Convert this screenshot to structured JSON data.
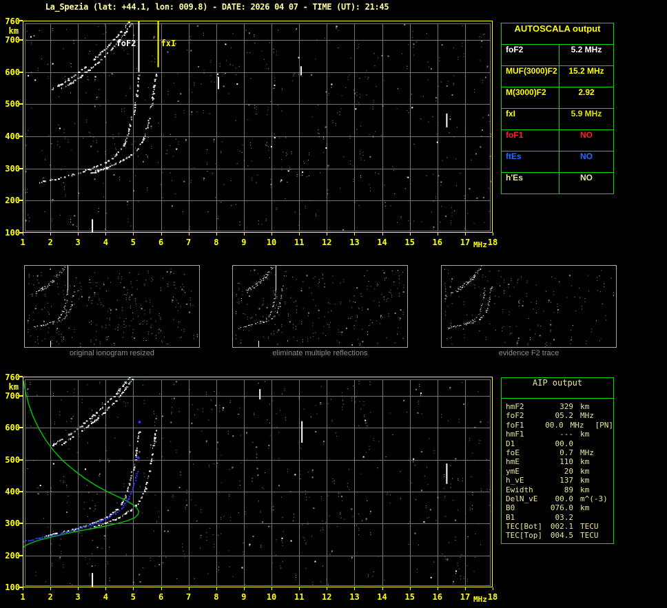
{
  "title": "La_Spezia (lat: +44.1, lon: 009.8) - DATE: 2026 04 07 - TIME (UT): 21:45",
  "colors": {
    "background": "#000000",
    "axis_yellow": "#ffff00",
    "title_yellow": "#ffff9e",
    "grid_gray": "#757575",
    "border_green": "#00dc00",
    "khaki_text": "#e9e79b",
    "trace_white": "#ffffff",
    "profile_green": "#00c800",
    "scaled_blue": "#2a3cff",
    "status_red": "#ff2222",
    "status_blue": "#1e6fff",
    "caption_gray": "#8f8f8f"
  },
  "axes": {
    "freq_ticks": [
      1,
      2,
      3,
      4,
      5,
      6,
      7,
      8,
      9,
      10,
      11,
      12,
      13,
      14,
      15,
      16,
      17,
      18
    ],
    "freq_unit": "MHz",
    "height_ticks": [
      760,
      700,
      600,
      500,
      400,
      300,
      200,
      100
    ],
    "height_unit": "km",
    "freq_range": [
      1,
      18
    ],
    "height_range": [
      100,
      760
    ]
  },
  "chart_data": [
    {
      "id": "main_ionogram",
      "type": "scatter",
      "title": "",
      "xlabel": "MHz",
      "ylabel": "km",
      "xlim": [
        1,
        18
      ],
      "ylim": [
        100,
        760
      ],
      "x_ticks": [
        1,
        2,
        3,
        4,
        5,
        6,
        7,
        8,
        9,
        10,
        11,
        12,
        13,
        14,
        15,
        16,
        17,
        18
      ],
      "y_ticks": [
        760,
        700,
        600,
        500,
        400,
        300,
        200,
        100
      ],
      "annotations": [
        {
          "label": "foF2",
          "freq": 5.2,
          "color": "#ffffff",
          "line_to_km": 600
        },
        {
          "label": "fxI",
          "freq": 5.9,
          "color": "#ffff00",
          "line_to_km": 615
        }
      ],
      "series": [
        {
          "name": "F2-trace-O-mode",
          "color": "#ffffff",
          "points": [
            [
              1.6,
              258
            ],
            [
              1.9,
              264
            ],
            [
              2.2,
              270
            ],
            [
              2.5,
              276
            ],
            [
              2.8,
              282
            ],
            [
              3.1,
              290
            ],
            [
              3.4,
              299
            ],
            [
              3.7,
              309
            ],
            [
              4.0,
              321
            ],
            [
              4.2,
              332
            ],
            [
              4.4,
              347
            ],
            [
              4.55,
              363
            ],
            [
              4.7,
              387
            ],
            [
              4.8,
              412
            ],
            [
              4.87,
              438
            ],
            [
              4.92,
              462
            ]
          ]
        },
        {
          "name": "F2-trace-X-mode",
          "color": "#ffffff",
          "points": [
            [
              3.4,
              286
            ],
            [
              3.7,
              294
            ],
            [
              4.0,
              303
            ],
            [
              4.3,
              314
            ],
            [
              4.6,
              327
            ],
            [
              4.9,
              344
            ],
            [
              5.1,
              360
            ],
            [
              5.3,
              385
            ],
            [
              5.43,
              415
            ],
            [
              5.53,
              445
            ],
            [
              5.58,
              468
            ]
          ]
        },
        {
          "name": "O-mode-asymptote",
          "color": "#ffffff",
          "points": [
            [
              5.0,
              470
            ],
            [
              5.05,
              500
            ],
            [
              5.1,
              530
            ],
            [
              5.15,
              560
            ],
            [
              5.18,
              590
            ]
          ]
        },
        {
          "name": "X-mode-asymptote",
          "color": "#ffffff",
          "points": [
            [
              5.62,
              490
            ],
            [
              5.68,
              520
            ],
            [
              5.72,
              548
            ],
            [
              5.76,
              572
            ],
            [
              5.8,
              595
            ]
          ]
        },
        {
          "name": "second-hop-trace-a",
          "color": "#ffffff",
          "points": [
            [
              2.05,
              548
            ],
            [
              2.35,
              563
            ],
            [
              2.65,
              580
            ],
            [
              2.95,
              598
            ],
            [
              3.25,
              618
            ],
            [
              3.55,
              640
            ],
            [
              3.85,
              664
            ],
            [
              4.15,
              690
            ],
            [
              4.45,
              717
            ],
            [
              4.7,
              743
            ],
            [
              4.82,
              758
            ]
          ]
        },
        {
          "name": "second-hop-trace-b",
          "color": "#ffffff",
          "points": [
            [
              2.4,
              550
            ],
            [
              2.7,
              566
            ],
            [
              3.0,
              584
            ],
            [
              3.3,
              603
            ],
            [
              3.6,
              624
            ],
            [
              3.9,
              648
            ],
            [
              4.2,
              674
            ],
            [
              4.5,
              702
            ],
            [
              4.75,
              730
            ],
            [
              4.92,
              752
            ]
          ]
        }
      ],
      "interference_dashes": [
        [
          3.52,
          100,
          142
        ],
        [
          8.08,
          547,
          585
        ],
        [
          11.07,
          590,
          618
        ],
        [
          16.34,
          428,
          471
        ]
      ]
    },
    {
      "id": "profile_ionogram",
      "type": "scatter",
      "title": "",
      "xlabel": "MHz",
      "ylabel": "km",
      "xlim": [
        1,
        18
      ],
      "ylim": [
        100,
        760
      ],
      "x_ticks": [
        1,
        2,
        3,
        4,
        5,
        6,
        7,
        8,
        9,
        10,
        11,
        12,
        13,
        14,
        15,
        16,
        17,
        18
      ],
      "y_ticks": [
        760,
        700,
        600,
        500,
        400,
        300,
        200,
        100
      ],
      "series": [
        {
          "name": "electron-density-profile",
          "color": "#00c800",
          "points": [
            [
              1.02,
              748
            ],
            [
              1.1,
              712
            ],
            [
              1.22,
              672
            ],
            [
              1.38,
              634
            ],
            [
              1.58,
              598
            ],
            [
              1.82,
              563
            ],
            [
              2.1,
              530
            ],
            [
              2.45,
              497
            ],
            [
              2.85,
              467
            ],
            [
              3.25,
              441
            ],
            [
              3.65,
              419
            ],
            [
              4.05,
              400
            ],
            [
              4.45,
              384
            ],
            [
              4.78,
              370
            ],
            [
              5.0,
              358
            ],
            [
              5.13,
              348
            ],
            [
              5.2,
              338
            ],
            [
              5.17,
              328
            ],
            [
              5.05,
              318
            ],
            [
              4.8,
              309
            ],
            [
              4.45,
              301
            ],
            [
              4.0,
              292
            ],
            [
              3.5,
              284
            ],
            [
              3.0,
              276
            ],
            [
              2.5,
              267
            ],
            [
              2.0,
              257
            ],
            [
              1.6,
              248
            ],
            [
              1.3,
              239
            ],
            [
              1.1,
              231
            ],
            [
              1.0,
              224
            ]
          ]
        },
        {
          "name": "autoscala-scaled-trace",
          "color": "#2a3cff",
          "points": [
            [
              1.0,
              246
            ],
            [
              1.35,
              251
            ],
            [
              1.7,
              257
            ],
            [
              2.05,
              263
            ],
            [
              2.4,
              270
            ],
            [
              2.75,
              278
            ],
            [
              3.1,
              287
            ],
            [
              3.45,
              297
            ],
            [
              3.8,
              309
            ],
            [
              4.1,
              321
            ],
            [
              4.35,
              334
            ],
            [
              4.55,
              349
            ],
            [
              4.7,
              364
            ],
            [
              4.82,
              381
            ],
            [
              4.92,
              400
            ],
            [
              5.0,
              422
            ],
            [
              5.07,
              444
            ],
            [
              5.12,
              465
            ],
            [
              5.16,
              508
            ],
            [
              5.2,
              620
            ]
          ]
        }
      ],
      "interference_dashes": [
        [
          3.52,
          100,
          145
        ],
        [
          9.58,
          689,
          721
        ],
        [
          11.1,
          553,
          620
        ],
        [
          16.34,
          424,
          488
        ]
      ]
    }
  ],
  "autoscala": {
    "header": "AUTOSCALA output",
    "rows": [
      {
        "label": "foF2",
        "value": "5.2 MHz",
        "label_color": "#ffffff",
        "value_color": "#ffffff"
      },
      {
        "label": "MUF(3000)F2",
        "value": "15.2 MHz",
        "label_color": "#ffff00",
        "value_color": "#ffff00"
      },
      {
        "label": "M(3000)F2",
        "value": "2.92",
        "label_color": "#ffff00",
        "value_color": "#ffff00"
      },
      {
        "label": "fxI",
        "value": "5.9 MHz",
        "label_color": "#ffff00",
        "value_color": "#e3e300"
      },
      {
        "label": "foF1",
        "value": "NO",
        "label_color": "#ff2222",
        "value_color": "#ff2222"
      },
      {
        "label": "ftEs",
        "value": "NO",
        "label_color": "#1e6fff",
        "value_color": "#1e6fff"
      },
      {
        "label": "h'Es",
        "value": "NO",
        "label_color": "#e9e79b",
        "value_color": "#e9e79b"
      }
    ]
  },
  "thumbnails": [
    {
      "caption": "original ionogram resized",
      "noise_count": 260,
      "noise_seed": 21
    },
    {
      "caption": "eliminate multiple reflections",
      "noise_count": 205,
      "noise_seed": 33
    },
    {
      "caption": "evidence F2 trace",
      "noise_count": 150,
      "noise_seed": 45
    }
  ],
  "aip": {
    "header": "AIP output",
    "rows": [
      {
        "label": "hmF2",
        "value": "329",
        "unit": "km",
        "extra": ""
      },
      {
        "label": "foF2",
        "value": "05.2",
        "unit": "MHz",
        "extra": ""
      },
      {
        "label": "foF1",
        "value": "00.0",
        "unit": "MHz",
        "extra": "[PN]"
      },
      {
        "label": "hmF1",
        "value": "---",
        "unit": "km",
        "extra": ""
      },
      {
        "label": "D1",
        "value": "00.0",
        "unit": "",
        "extra": ""
      },
      {
        "label": "foE",
        "value": "0.7",
        "unit": "MHz",
        "extra": ""
      },
      {
        "label": "hmE",
        "value": "110",
        "unit": "km",
        "extra": ""
      },
      {
        "label": "ymE",
        "value": "20",
        "unit": "km",
        "extra": ""
      },
      {
        "label": "h_vE",
        "value": "137",
        "unit": "km",
        "extra": ""
      },
      {
        "label": "Ewidth",
        "value": "89",
        "unit": "km",
        "extra": ""
      },
      {
        "label": "DelN_vE",
        "value": "00.0",
        "unit": "m^(-3)",
        "extra": ""
      },
      {
        "label": "B0",
        "value": "076.0",
        "unit": "km",
        "extra": ""
      },
      {
        "label": "B1",
        "value": "03.2",
        "unit": "",
        "extra": ""
      },
      {
        "label": "TEC[Bot]",
        "value": "002.1",
        "unit": "TECU",
        "extra": ""
      },
      {
        "label": "TEC[Top]",
        "value": "004.5",
        "unit": "TECU",
        "extra": ""
      }
    ]
  },
  "plot_noise": {
    "top_count": 540,
    "top_seed": 7,
    "bottom_count": 520,
    "bottom_seed": 11
  }
}
